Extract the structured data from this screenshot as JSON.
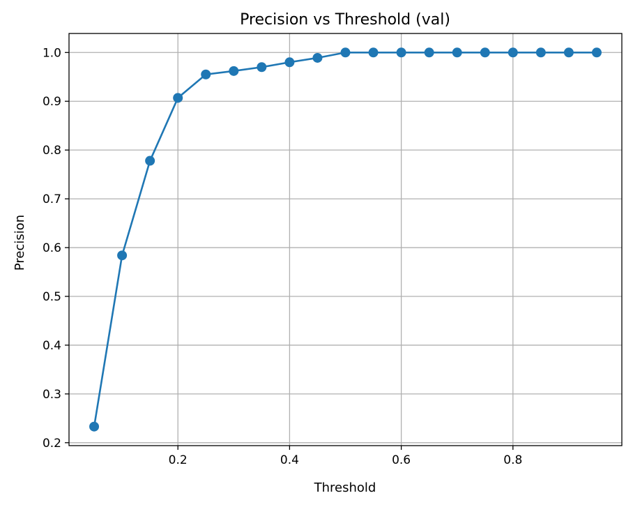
{
  "chart_data": {
    "type": "line",
    "title": "Precision vs Threshold (val)",
    "xlabel": "Threshold",
    "ylabel": "Precision",
    "x": [
      0.05,
      0.1,
      0.15,
      0.2,
      0.25,
      0.3,
      0.35,
      0.4,
      0.45,
      0.5,
      0.55,
      0.6,
      0.65,
      0.7,
      0.75,
      0.8,
      0.85,
      0.9,
      0.95
    ],
    "series": [
      {
        "values": [
          0.233,
          0.584,
          0.778,
          0.907,
          0.955,
          0.962,
          0.97,
          0.98,
          0.989,
          1.0,
          1.0,
          1.0,
          1.0,
          1.0,
          1.0,
          1.0,
          1.0,
          1.0,
          1.0
        ],
        "color": "#1f77b4",
        "marker": "circle"
      }
    ],
    "xlim": [
      0.005,
      0.995
    ],
    "ylim": [
      0.194,
      1.039
    ],
    "xticks": [
      0.2,
      0.4,
      0.6,
      0.8
    ],
    "xtick_labels": [
      "0.2",
      "0.4",
      "0.6",
      "0.8"
    ],
    "yticks": [
      0.2,
      0.3,
      0.4,
      0.5,
      0.6,
      0.7,
      0.8,
      0.9,
      1.0
    ],
    "ytick_labels": [
      "0.2",
      "0.3",
      "0.4",
      "0.5",
      "0.6",
      "0.7",
      "0.8",
      "0.9",
      "1.0"
    ],
    "grid": true,
    "legend": false
  }
}
